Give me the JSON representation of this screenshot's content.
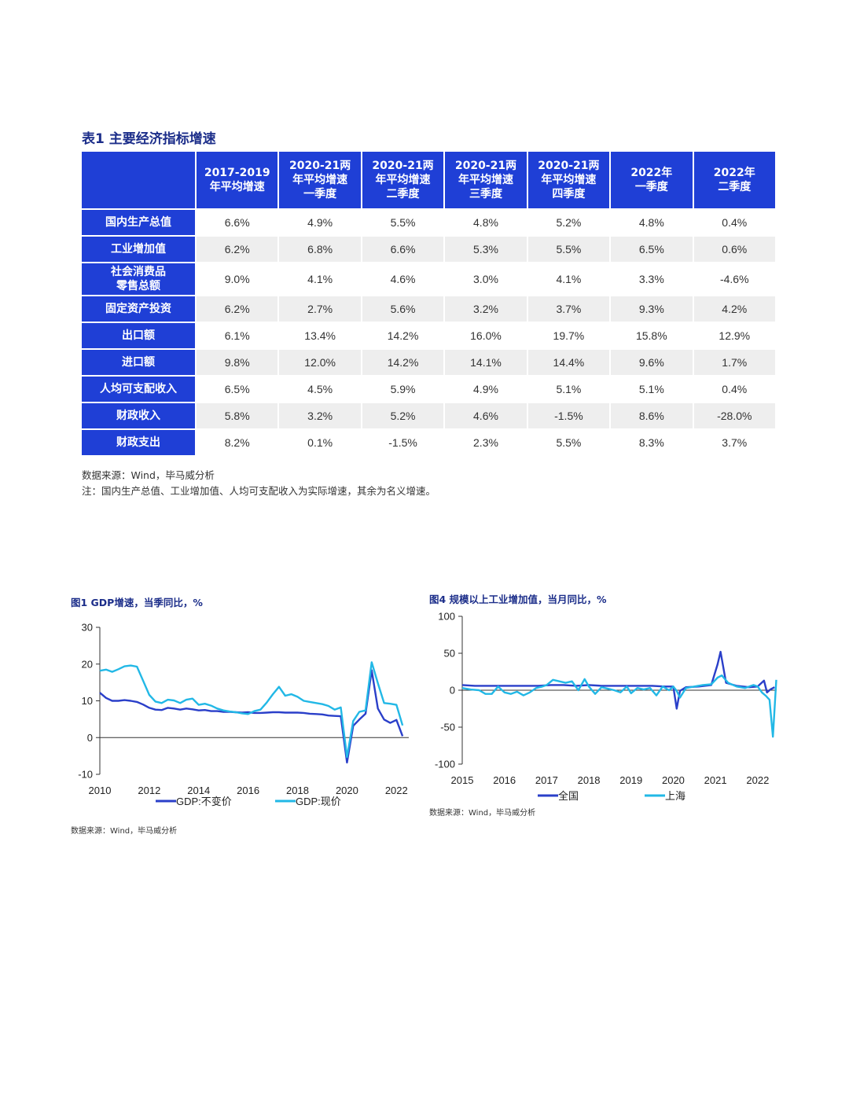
{
  "table": {
    "title": "表1  主要经济指标增速",
    "corner": "",
    "headers": [
      "2017-2019\n年平均增速",
      "2020-21两\n年平均增速\n一季度",
      "2020-21两\n年平均增速\n二季度",
      "2020-21两\n年平均增速\n三季度",
      "2020-21两\n年平均增速\n四季度",
      "2022年\n一季度",
      "2022年\n二季度"
    ],
    "rows": [
      {
        "label": "国内生产总值",
        "values": [
          "6.6%",
          "4.9%",
          "5.5%",
          "4.8%",
          "5.2%",
          "4.8%",
          "0.4%"
        ]
      },
      {
        "label": "工业增加值",
        "values": [
          "6.2%",
          "6.8%",
          "6.6%",
          "5.3%",
          "5.5%",
          "6.5%",
          "0.6%"
        ]
      },
      {
        "label": "社会消费品\n零售总额",
        "values": [
          "9.0%",
          "4.1%",
          "4.6%",
          "3.0%",
          "4.1%",
          "3.3%",
          "-4.6%"
        ]
      },
      {
        "label": "固定资产投资",
        "values": [
          "6.2%",
          "2.7%",
          "5.6%",
          "3.2%",
          "3.7%",
          "9.3%",
          "4.2%"
        ]
      },
      {
        "label": "出口额",
        "values": [
          "6.1%",
          "13.4%",
          "14.2%",
          "16.0%",
          "19.7%",
          "15.8%",
          "12.9%"
        ]
      },
      {
        "label": "进口额",
        "values": [
          "9.8%",
          "12.0%",
          "14.2%",
          "14.1%",
          "14.4%",
          "9.6%",
          "1.7%"
        ]
      },
      {
        "label": "人均可支配收入",
        "values": [
          "6.5%",
          "4.5%",
          "5.9%",
          "4.9%",
          "5.1%",
          "5.1%",
          "0.4%"
        ]
      },
      {
        "label": "财政收入",
        "values": [
          "5.8%",
          "3.2%",
          "5.2%",
          "4.6%",
          "-1.5%",
          "8.6%",
          "-28.0%"
        ]
      },
      {
        "label": "财政支出",
        "values": [
          "8.2%",
          "0.1%",
          "-1.5%",
          "2.3%",
          "5.5%",
          "8.3%",
          "3.7%"
        ]
      }
    ],
    "source": "数据来源：Wind，毕马威分析",
    "note": "注：国内生产总值、工业增加值、人均可支配收入为实际增速，其余为名义增速。"
  },
  "colors": {
    "header_blue": "#1f3fd6",
    "dark_series": "#2a3fc9",
    "light_series": "#22b8e6",
    "title_navy": "#1c2e8a"
  },
  "chart_data": [
    {
      "type": "line",
      "title": "图1  GDP增速，当季同比，%",
      "x_ticks": [
        "2010",
        "2012",
        "2014",
        "2016",
        "2018",
        "2020",
        "2022"
      ],
      "y_ticks": [
        "30",
        "20",
        "10",
        "0",
        "-10"
      ],
      "xlim": [
        2010,
        2022.5
      ],
      "ylim": [
        -10,
        30
      ],
      "series": [
        {
          "name": "GDP:不变价",
          "color": "#2a3fc9",
          "x": [
            2010.0,
            2010.25,
            2010.5,
            2010.75,
            2011.0,
            2011.25,
            2011.5,
            2011.75,
            2012.0,
            2012.25,
            2012.5,
            2012.75,
            2013.0,
            2013.25,
            2013.5,
            2013.75,
            2014.0,
            2014.25,
            2014.5,
            2014.75,
            2015.0,
            2015.25,
            2015.5,
            2015.75,
            2016.0,
            2016.25,
            2016.5,
            2016.75,
            2017.0,
            2017.25,
            2017.5,
            2017.75,
            2018.0,
            2018.25,
            2018.5,
            2018.75,
            2019.0,
            2019.25,
            2019.5,
            2019.75,
            2020.0,
            2020.25,
            2020.5,
            2020.75,
            2021.0,
            2021.25,
            2021.5,
            2021.75,
            2022.0,
            2022.25
          ],
          "y": [
            12.2,
            10.8,
            10.0,
            10.0,
            10.2,
            10.0,
            9.7,
            9.0,
            8.1,
            7.6,
            7.5,
            8.1,
            7.9,
            7.6,
            7.9,
            7.7,
            7.4,
            7.5,
            7.2,
            7.2,
            7.0,
            7.0,
            6.9,
            6.8,
            6.9,
            6.7,
            6.7,
            6.8,
            6.9,
            6.9,
            6.8,
            6.8,
            6.8,
            6.7,
            6.5,
            6.4,
            6.3,
            6.0,
            5.9,
            5.8,
            -6.8,
            3.2,
            4.9,
            6.5,
            18.3,
            7.9,
            4.9,
            4.0,
            4.8,
            0.4
          ]
        },
        {
          "name": "GDP:现价",
          "color": "#22b8e6",
          "x": [
            2010.0,
            2010.25,
            2010.5,
            2010.75,
            2011.0,
            2011.25,
            2011.5,
            2011.75,
            2012.0,
            2012.25,
            2012.5,
            2012.75,
            2013.0,
            2013.25,
            2013.5,
            2013.75,
            2014.0,
            2014.25,
            2014.5,
            2014.75,
            2015.0,
            2015.25,
            2015.5,
            2015.75,
            2016.0,
            2016.25,
            2016.5,
            2016.75,
            2017.0,
            2017.25,
            2017.5,
            2017.75,
            2018.0,
            2018.25,
            2018.5,
            2018.75,
            2019.0,
            2019.25,
            2019.5,
            2019.75,
            2020.0,
            2020.25,
            2020.5,
            2020.75,
            2021.0,
            2021.25,
            2021.5,
            2021.75,
            2022.0,
            2022.25
          ],
          "y": [
            18.2,
            18.5,
            17.9,
            18.6,
            19.4,
            19.6,
            19.3,
            15.5,
            11.6,
            9.8,
            9.4,
            10.3,
            10.1,
            9.4,
            10.3,
            10.6,
            8.9,
            9.2,
            8.7,
            7.9,
            7.4,
            7.1,
            6.9,
            6.6,
            6.4,
            7.2,
            7.6,
            9.5,
            11.8,
            13.8,
            11.4,
            11.8,
            11.1,
            10.0,
            9.7,
            9.4,
            9.1,
            8.6,
            7.6,
            8.2,
            -5.3,
            4.5,
            7.0,
            7.4,
            20.5,
            14.8,
            9.4,
            9.2,
            8.9,
            3.3
          ]
        }
      ]
    },
    {
      "type": "line",
      "title": "图4  规模以上工业增加值，当月同比，%",
      "x_ticks": [
        "2015",
        "2016",
        "2017",
        "2018",
        "2019",
        "2020",
        "2021",
        "2022"
      ],
      "y_ticks": [
        "100",
        "50",
        "0",
        "-50",
        "-100"
      ],
      "xlim": [
        2015,
        2022.45
      ],
      "ylim": [
        -100,
        100
      ],
      "series": [
        {
          "name": "全国",
          "color": "#2a3fc9",
          "x": [
            2015.0,
            2015.3,
            2015.6,
            2015.9,
            2016.2,
            2016.5,
            2016.8,
            2017.1,
            2017.4,
            2017.7,
            2018.0,
            2018.3,
            2018.6,
            2018.9,
            2019.2,
            2019.5,
            2019.8,
            2020.0,
            2020.08,
            2020.16,
            2020.3,
            2020.6,
            2020.9,
            2021.05,
            2021.12,
            2021.25,
            2021.5,
            2021.8,
            2022.0,
            2022.15,
            2022.22,
            2022.3,
            2022.4
          ],
          "y": [
            7,
            6,
            6,
            6,
            6,
            6,
            6,
            7,
            7,
            6,
            7,
            6,
            6,
            6,
            6,
            6,
            5,
            5,
            -25,
            -1,
            4,
            5,
            7,
            35,
            52,
            10,
            6,
            4,
            5,
            13,
            -3,
            1,
            4
          ]
        },
        {
          "name": "上海",
          "color": "#22b8e6",
          "x": [
            2015.0,
            2015.2,
            2015.4,
            2015.55,
            2015.7,
            2015.85,
            2016.0,
            2016.15,
            2016.3,
            2016.45,
            2016.6,
            2016.75,
            2016.9,
            2017.0,
            2017.15,
            2017.3,
            2017.45,
            2017.6,
            2017.75,
            2017.9,
            2018.0,
            2018.15,
            2018.3,
            2018.45,
            2018.6,
            2018.75,
            2018.9,
            2019.0,
            2019.15,
            2019.3,
            2019.45,
            2019.6,
            2019.75,
            2019.9,
            2020.0,
            2020.08,
            2020.16,
            2020.3,
            2020.5,
            2020.7,
            2020.9,
            2021.05,
            2021.15,
            2021.3,
            2021.5,
            2021.7,
            2021.9,
            2022.0,
            2022.1,
            2022.2,
            2022.28,
            2022.36,
            2022.44
          ],
          "y": [
            3,
            1,
            0,
            -5,
            -5,
            5,
            -3,
            -5,
            -2,
            -7,
            -3,
            3,
            5,
            7,
            14,
            12,
            10,
            12,
            0,
            15,
            5,
            -5,
            4,
            2,
            0,
            -3,
            5,
            -4,
            3,
            1,
            3,
            -7,
            5,
            0,
            5,
            -1,
            -10,
            3,
            5,
            7,
            8,
            17,
            20,
            10,
            5,
            3,
            7,
            5,
            -3,
            -8,
            -13,
            -63,
            14
          ]
        }
      ]
    }
  ],
  "chart1_source": "数据来源：Wind，毕马威分析",
  "chart4_source": "数据来源：Wind，毕马威分析"
}
